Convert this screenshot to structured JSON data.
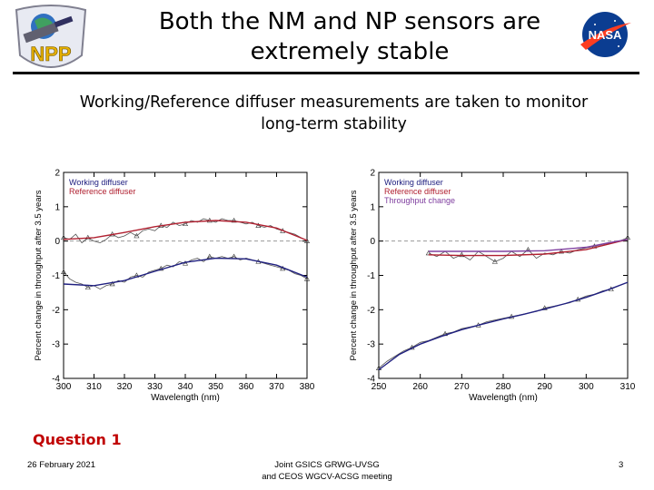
{
  "slide": {
    "title_line1": "Both the NM and NP sensors are",
    "title_line2": "extremely stable",
    "subtitle_line1": "Working/Reference diffuser measurements are taken to monitor",
    "subtitle_line2": "long-term stability",
    "logo_left_text": "NPP",
    "logo_right_text": "NASA",
    "question": "Question 1",
    "footer_date": "26 February 2021",
    "footer_meeting_line1": "Joint GSICS GRWG-UVSG",
    "footer_meeting_line2": "and CEOS WGCV-ACSG meeting",
    "page_number": "3"
  },
  "colors": {
    "working": "#202080",
    "reference": "#b02030",
    "throughput": "#8040a0",
    "zero_line": "#999999"
  },
  "chart_data": [
    {
      "type": "line",
      "xlabel": "Wavelength (nm)",
      "ylabel": "Percent change in throughput after 3.5 years",
      "xlim": [
        300,
        380
      ],
      "ylim": [
        -4,
        2
      ],
      "xticks": [
        300,
        310,
        320,
        330,
        340,
        350,
        360,
        370,
        380
      ],
      "yticks": [
        -4,
        -3,
        -2,
        -1,
        0,
        1,
        2
      ],
      "legend": [
        "Working diffuser",
        "Reference diffuser"
      ],
      "series": [
        {
          "name": "Reference diffuser measured",
          "x": [
            300,
            302,
            304,
            306,
            308,
            310,
            312,
            314,
            316,
            318,
            320,
            322,
            324,
            326,
            328,
            330,
            332,
            334,
            336,
            338,
            340,
            342,
            344,
            346,
            348,
            350,
            352,
            354,
            356,
            358,
            360,
            362,
            364,
            366,
            368,
            370,
            372,
            374,
            376,
            378,
            380
          ],
          "y": [
            0.1,
            0.05,
            0.2,
            -0.05,
            0.1,
            0.0,
            -0.05,
            0.05,
            0.2,
            0.1,
            0.15,
            0.25,
            0.15,
            0.3,
            0.35,
            0.3,
            0.45,
            0.4,
            0.55,
            0.45,
            0.5,
            0.6,
            0.55,
            0.65,
            0.6,
            0.55,
            0.65,
            0.6,
            0.6,
            0.55,
            0.5,
            0.55,
            0.45,
            0.4,
            0.45,
            0.35,
            0.3,
            0.25,
            0.2,
            0.1,
            0.0
          ]
        },
        {
          "name": "Reference diffuser fit",
          "x": [
            300,
            310,
            320,
            330,
            340,
            350,
            360,
            370,
            380
          ],
          "y": [
            0.05,
            0.1,
            0.25,
            0.42,
            0.55,
            0.6,
            0.55,
            0.38,
            0.02
          ]
        },
        {
          "name": "Working diffuser measured",
          "x": [
            300,
            302,
            304,
            306,
            308,
            310,
            312,
            314,
            316,
            318,
            320,
            322,
            324,
            326,
            328,
            330,
            332,
            334,
            336,
            338,
            340,
            342,
            344,
            346,
            348,
            350,
            352,
            354,
            356,
            358,
            360,
            362,
            364,
            366,
            368,
            370,
            372,
            374,
            376,
            378,
            380
          ],
          "y": [
            -0.9,
            -1.1,
            -1.2,
            -1.25,
            -1.35,
            -1.3,
            -1.4,
            -1.3,
            -1.25,
            -1.15,
            -1.2,
            -1.05,
            -1.0,
            -1.05,
            -0.9,
            -0.85,
            -0.8,
            -0.7,
            -0.75,
            -0.6,
            -0.65,
            -0.55,
            -0.5,
            -0.6,
            -0.45,
            -0.5,
            -0.45,
            -0.5,
            -0.45,
            -0.55,
            -0.5,
            -0.55,
            -0.6,
            -0.65,
            -0.7,
            -0.75,
            -0.8,
            -0.85,
            -0.95,
            -1.0,
            -1.1
          ]
        },
        {
          "name": "Working diffuser fit",
          "x": [
            300,
            310,
            320,
            330,
            340,
            350,
            360,
            370,
            380
          ],
          "y": [
            -1.25,
            -1.3,
            -1.15,
            -0.88,
            -0.62,
            -0.5,
            -0.52,
            -0.7,
            -1.05
          ]
        }
      ]
    },
    {
      "type": "line",
      "xlabel": "Wavelength (nm)",
      "ylabel": "Percent change in throughput after 3.5 years",
      "xlim": [
        250,
        310
      ],
      "ylim": [
        -4,
        2
      ],
      "xticks": [
        250,
        260,
        270,
        280,
        290,
        300,
        310
      ],
      "yticks": [
        -4,
        -3,
        -2,
        -1,
        0,
        1,
        2
      ],
      "legend": [
        "Working diffuser",
        "Reference diffuser",
        "Throughput change"
      ],
      "series": [
        {
          "name": "Reference diffuser measured",
          "x": [
            262,
            264,
            266,
            268,
            270,
            272,
            274,
            276,
            278,
            280,
            282,
            284,
            286,
            288,
            290,
            292,
            294,
            296,
            298,
            300,
            302,
            304,
            306,
            308,
            310
          ],
          "y": [
            -0.35,
            -0.45,
            -0.3,
            -0.5,
            -0.4,
            -0.55,
            -0.3,
            -0.45,
            -0.6,
            -0.5,
            -0.3,
            -0.45,
            -0.25,
            -0.5,
            -0.35,
            -0.4,
            -0.3,
            -0.35,
            -0.25,
            -0.2,
            -0.15,
            -0.1,
            -0.05,
            0.0,
            0.1
          ]
        },
        {
          "name": "Reference diffuser fit",
          "x": [
            262,
            270,
            280,
            290,
            300,
            305,
            310
          ],
          "y": [
            -0.4,
            -0.42,
            -0.42,
            -0.38,
            -0.25,
            -0.1,
            0.05
          ]
        },
        {
          "name": "Throughput change",
          "x": [
            262,
            270,
            280,
            290,
            300,
            305,
            310
          ],
          "y": [
            -0.3,
            -0.3,
            -0.3,
            -0.28,
            -0.18,
            -0.06,
            0.05
          ]
        },
        {
          "name": "Working diffuser measured",
          "x": [
            250,
            252,
            254,
            256,
            258,
            260,
            262,
            264,
            266,
            268,
            270,
            272,
            274,
            276,
            278,
            280,
            282,
            284,
            286,
            288,
            290,
            292,
            294,
            296,
            298,
            300,
            302,
            304,
            306,
            308,
            310
          ],
          "y": [
            -3.7,
            -3.5,
            -3.35,
            -3.2,
            -3.1,
            -2.95,
            -2.9,
            -2.8,
            -2.7,
            -2.65,
            -2.55,
            -2.5,
            -2.45,
            -2.35,
            -2.3,
            -2.25,
            -2.2,
            -2.15,
            -2.1,
            -2.05,
            -1.95,
            -1.9,
            -1.85,
            -1.8,
            -1.7,
            -1.6,
            -1.55,
            -1.45,
            -1.4,
            -1.3,
            -1.2
          ]
        },
        {
          "name": "Working diffuser fit",
          "x": [
            250,
            255,
            260,
            265,
            270,
            275,
            280,
            285,
            290,
            295,
            300,
            305,
            310
          ],
          "y": [
            -3.75,
            -3.3,
            -3.0,
            -2.78,
            -2.58,
            -2.42,
            -2.27,
            -2.13,
            -1.98,
            -1.82,
            -1.64,
            -1.43,
            -1.2
          ]
        }
      ]
    }
  ]
}
